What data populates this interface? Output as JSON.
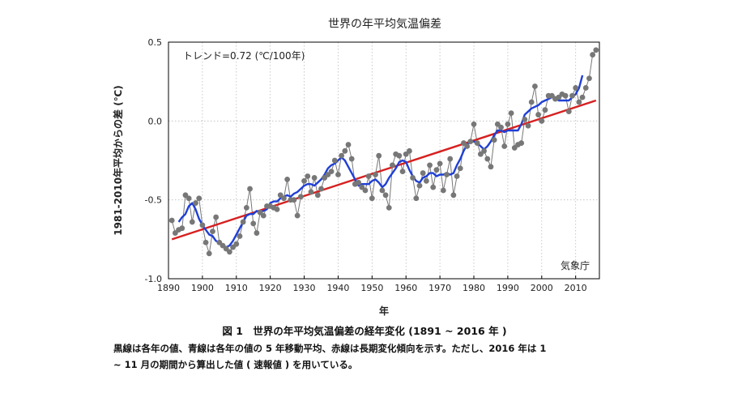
{
  "chart_data": {
    "type": "line",
    "title": "世界の年平均気温偏差",
    "ylabel": "1981-2010年平均からの差 (℃)",
    "xlabel": "年",
    "trend_label": "トレンド=0.72 (℃/100年)",
    "source_label": "気象庁",
    "xlim": [
      1890,
      2017
    ],
    "ylim": [
      -1.0,
      0.5
    ],
    "x_ticks": [
      1890,
      1900,
      1910,
      1920,
      1930,
      1940,
      1950,
      1960,
      1970,
      1980,
      1990,
      2000,
      2010
    ],
    "y_ticks": [
      -1.0,
      -0.5,
      0.0,
      0.5
    ],
    "y_tick_labels": [
      "-1.0",
      "-0.5",
      "0.0",
      "0.5"
    ],
    "grid": true,
    "x": [
      1891,
      1892,
      1893,
      1894,
      1895,
      1896,
      1897,
      1898,
      1899,
      1900,
      1901,
      1902,
      1903,
      1904,
      1905,
      1906,
      1907,
      1908,
      1909,
      1910,
      1911,
      1912,
      1913,
      1914,
      1915,
      1916,
      1917,
      1918,
      1919,
      1920,
      1921,
      1922,
      1923,
      1924,
      1925,
      1926,
      1927,
      1928,
      1929,
      1930,
      1931,
      1932,
      1933,
      1934,
      1935,
      1936,
      1937,
      1938,
      1939,
      1940,
      1941,
      1942,
      1943,
      1944,
      1945,
      1946,
      1947,
      1948,
      1949,
      1950,
      1951,
      1952,
      1953,
      1954,
      1955,
      1956,
      1957,
      1958,
      1959,
      1960,
      1961,
      1962,
      1963,
      1964,
      1965,
      1966,
      1967,
      1968,
      1969,
      1970,
      1971,
      1972,
      1973,
      1974,
      1975,
      1976,
      1977,
      1978,
      1979,
      1980,
      1981,
      1982,
      1983,
      1984,
      1985,
      1986,
      1987,
      1988,
      1989,
      1990,
      1991,
      1992,
      1993,
      1994,
      1995,
      1996,
      1997,
      1998,
      1999,
      2000,
      2001,
      2002,
      2003,
      2004,
      2005,
      2006,
      2007,
      2008,
      2009,
      2010,
      2011,
      2012,
      2013,
      2014,
      2015,
      2016
    ],
    "series": [
      {
        "role": "annual",
        "color": "#777777",
        "values": [
          -0.63,
          -0.71,
          -0.69,
          -0.68,
          -0.47,
          -0.49,
          -0.64,
          -0.52,
          -0.49,
          -0.66,
          -0.77,
          -0.84,
          -0.7,
          -0.61,
          -0.77,
          -0.79,
          -0.81,
          -0.83,
          -0.8,
          -0.78,
          -0.73,
          -0.64,
          -0.55,
          -0.43,
          -0.65,
          -0.71,
          -0.58,
          -0.6,
          -0.54,
          -0.54,
          -0.55,
          -0.56,
          -0.47,
          -0.49,
          -0.37,
          -0.5,
          -0.5,
          -0.6,
          -0.48,
          -0.38,
          -0.35,
          -0.45,
          -0.36,
          -0.47,
          -0.43,
          -0.36,
          -0.34,
          -0.32,
          -0.25,
          -0.34,
          -0.22,
          -0.19,
          -0.15,
          -0.24,
          -0.4,
          -0.39,
          -0.42,
          -0.44,
          -0.35,
          -0.49,
          -0.34,
          -0.22,
          -0.44,
          -0.47,
          -0.55,
          -0.28,
          -0.21,
          -0.22,
          -0.32,
          -0.21,
          -0.19,
          -0.36,
          -0.49,
          -0.41,
          -0.33,
          -0.38,
          -0.28,
          -0.42,
          -0.31,
          -0.27,
          -0.44,
          -0.34,
          -0.24,
          -0.47,
          -0.35,
          -0.3,
          -0.14,
          -0.16,
          -0.13,
          -0.02,
          -0.14,
          -0.21,
          -0.19,
          -0.24,
          -0.29,
          -0.12,
          -0.02,
          -0.04,
          -0.16,
          -0.02,
          0.05,
          -0.17,
          -0.15,
          -0.14,
          0.01,
          -0.03,
          0.12,
          0.22,
          0.04,
          0.0,
          0.07,
          0.16,
          0.16,
          0.14,
          0.15,
          0.17,
          0.16,
          0.06,
          0.16,
          0.21,
          0.12,
          0.15,
          0.21,
          0.27,
          0.42,
          0.45
        ]
      },
      {
        "role": "5-year moving average",
        "color": "#1f3fd6",
        "values": [
          null,
          null,
          -0.64,
          -0.61,
          -0.59,
          -0.54,
          -0.52,
          -0.56,
          -0.62,
          -0.66,
          -0.69,
          -0.72,
          -0.73,
          -0.76,
          -0.77,
          -0.79,
          -0.8,
          -0.79,
          -0.76,
          -0.72,
          -0.68,
          -0.64,
          -0.6,
          -0.59,
          -0.59,
          -0.57,
          -0.58,
          -0.57,
          -0.56,
          -0.52,
          -0.51,
          -0.51,
          -0.49,
          -0.48,
          -0.47,
          -0.48,
          -0.46,
          -0.45,
          -0.43,
          -0.41,
          -0.4,
          -0.4,
          -0.41,
          -0.39,
          -0.37,
          -0.34,
          -0.3,
          -0.28,
          -0.27,
          -0.25,
          -0.23,
          -0.25,
          -0.29,
          -0.33,
          -0.37,
          -0.41,
          -0.4,
          -0.4,
          -0.4,
          -0.38,
          -0.37,
          -0.39,
          -0.42,
          -0.4,
          -0.36,
          -0.33,
          -0.3,
          -0.26,
          -0.25,
          -0.26,
          -0.31,
          -0.35,
          -0.38,
          -0.39,
          -0.36,
          -0.35,
          -0.33,
          -0.33,
          -0.35,
          -0.34,
          -0.34,
          -0.33,
          -0.34,
          -0.33,
          -0.28,
          -0.24,
          -0.19,
          -0.15,
          -0.13,
          -0.13,
          -0.14,
          -0.16,
          -0.18,
          -0.16,
          -0.13,
          -0.09,
          -0.06,
          -0.06,
          -0.07,
          -0.06,
          -0.06,
          -0.06,
          -0.06,
          -0.02,
          0.04,
          0.06,
          0.08,
          0.09,
          0.1,
          0.12,
          0.13,
          0.14,
          0.15,
          0.15,
          0.13,
          0.13,
          0.13,
          0.13,
          0.15,
          0.17,
          0.21,
          0.29,
          null,
          null,
          null,
          null
        ]
      },
      {
        "role": "long-term trend",
        "color": "#d62020",
        "x": [
          1891,
          2016
        ],
        "values": [
          -0.75,
          0.13
        ]
      }
    ]
  },
  "caption": {
    "title": "図 1　世界の年平均気温偏差の経年変化 (1891 ~ 2016 年 )",
    "line1": "黒線は各年の値、青線は各年の値の 5 年移動平均、赤線は長期変化傾向を示す。ただし、2016 年は 1",
    "line2": "~ 11 月の期間から算出した値 ( 速報値 ) を用いている。"
  }
}
